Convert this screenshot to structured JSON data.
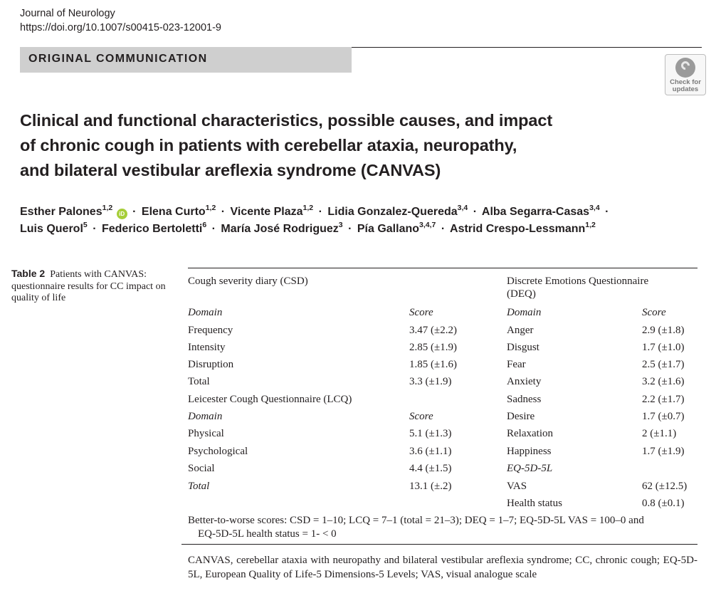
{
  "journal": {
    "name": "Journal of Neurology",
    "doi": "https://doi.org/10.1007/s00415-023-12001-9"
  },
  "section": "ORIGINAL COMMUNICATION",
  "check_updates": {
    "line1": "Check for",
    "line2": "updates"
  },
  "title_lines": [
    "Clinical and functional characteristics, possible causes, and impact",
    "of chronic cough in patients with cerebellar ataxia, neuropathy,",
    "and bilateral vestibular areflexia syndrome (CANVAS)"
  ],
  "authors": {
    "line1": [
      {
        "name": "Esther Palones",
        "aff": "1,2"
      },
      {
        "name": "Elena Curto",
        "aff": "1,2"
      },
      {
        "name": "Vicente Plaza",
        "aff": "1,2"
      },
      {
        "name": "Lidia Gonzalez-Quereda",
        "aff": "3,4"
      },
      {
        "name": "Alba Segarra-Casas",
        "aff": "3,4"
      }
    ],
    "line2": [
      {
        "name": "Luis Querol",
        "aff": "5"
      },
      {
        "name": "Federico Bertoletti",
        "aff": "6"
      },
      {
        "name": "María José Rodriguez",
        "aff": "3"
      },
      {
        "name": "Pía Gallano",
        "aff": "3,4,7"
      },
      {
        "name": "Astrid Crespo-Lessmann",
        "aff": "1,2"
      }
    ],
    "separator": "·",
    "orcid_label": "iD"
  },
  "caption": {
    "label": "Table 2",
    "text": "Patients with CANVAS: questionnaire results for CC impact on quality of life"
  },
  "table": {
    "csd_title": "Cough severity diary (CSD)",
    "deq_title_1": "Discrete Emotions Questionnaire",
    "deq_title_2": "(DEQ)",
    "domain_header": "Domain",
    "score_header": "Score",
    "csd_rows": [
      {
        "domain": "Frequency",
        "score": "3.47 (±2.2)"
      },
      {
        "domain": "Intensity",
        "score": "2.85 (±1.9)"
      },
      {
        "domain": "Disruption",
        "score": "1.85 (±1.6)"
      },
      {
        "domain": "Total",
        "score": "3.3 (±1.9)"
      }
    ],
    "lcq_title": "Leicester Cough Questionnaire (LCQ)",
    "lcq_rows": [
      {
        "domain": "Physical",
        "score": "5.1 (±1.3)"
      },
      {
        "domain": "Psychological",
        "score": "3.6 (±1.1)"
      },
      {
        "domain": "Social",
        "score": "4.4 (±1.5)"
      },
      {
        "domain": "Total",
        "score": "13.1 (±.2)"
      }
    ],
    "deq_rows": [
      {
        "domain": "Anger",
        "score": "2.9 (±1.8)"
      },
      {
        "domain": "Disgust",
        "score": "1.7 (±1.0)"
      },
      {
        "domain": "Fear",
        "score": "2.5 (±1.7)"
      },
      {
        "domain": "Anxiety",
        "score": "3.2 (±1.6)"
      },
      {
        "domain": "Sadness",
        "score": "2.2 (±1.7)"
      },
      {
        "domain": "Desire",
        "score": "1.7 (±0.7)"
      },
      {
        "domain": "Relaxation",
        "score": "2 (±1.1)"
      },
      {
        "domain": "Happiness",
        "score": "1.7 (±1.9)"
      }
    ],
    "eq_title": "EQ-5D-5L",
    "eq_rows": [
      {
        "domain": "VAS",
        "score": "62 (±12.5)"
      },
      {
        "domain": "Health status",
        "score": "0.8 (±0.1)"
      }
    ],
    "footnote_1": "Better-to-worse scores: CSD = 1–10; LCQ = 7–1 (total = 21–3); DEQ = 1–7; EQ-5D-5L VAS = 100–0 and",
    "footnote_2": "EQ-5D-5L health status = 1- < 0",
    "abbreviations": "CANVAS, cerebellar ataxia with neuropathy and bilateral vestibular areflexia syndrome; CC, chronic cough; EQ-5D-5L, European Quality of Life-5 Dimensions-5 Levels; VAS, visual analogue scale"
  }
}
